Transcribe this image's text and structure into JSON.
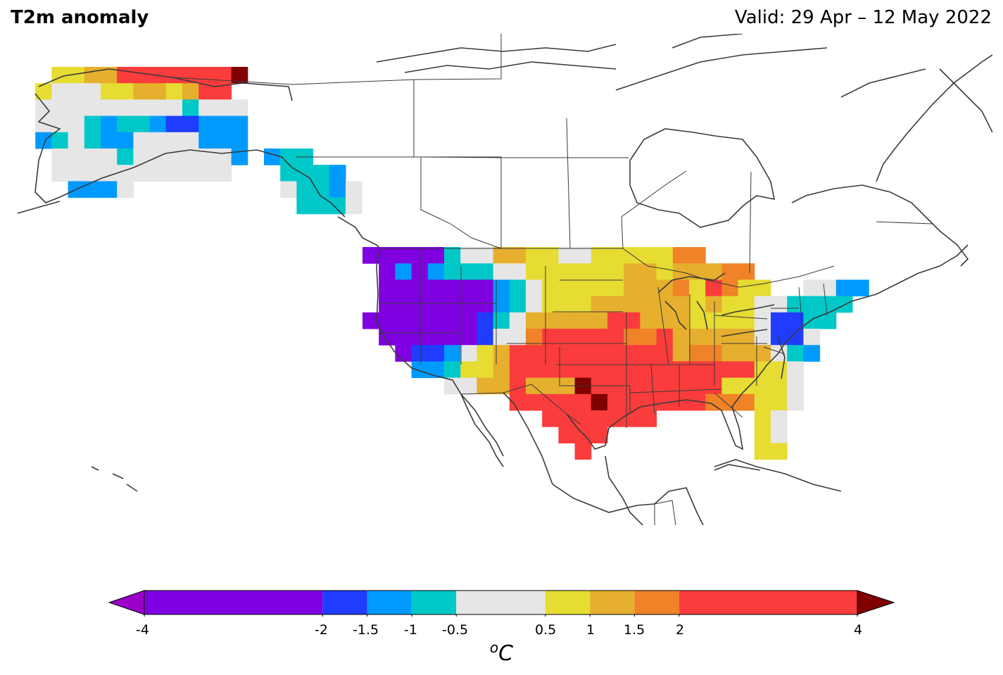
{
  "title": "T2m anomaly",
  "valid": "Valid: 29 Apr – 12 May 2022",
  "colorbar": {
    "unit_base": "C",
    "unit_sup": "o",
    "ticks": [
      "-4",
      "-2",
      "-1.5",
      "-1",
      "-0.5",
      "0.5",
      "1",
      "1.5",
      "2",
      "4"
    ],
    "under_color": "#9a00c8",
    "over_color": "#800000",
    "bins": [
      {
        "from": -4,
        "to": -2,
        "color": "#7f00e0"
      },
      {
        "from": -2,
        "to": -1.5,
        "color": "#1f3cff"
      },
      {
        "from": -1.5,
        "to": -1,
        "color": "#009aff"
      },
      {
        "from": -1,
        "to": -0.5,
        "color": "#00c8c8"
      },
      {
        "from": -0.5,
        "to": 0.5,
        "color": "#e6e6e6"
      },
      {
        "from": 0.5,
        "to": 1,
        "color": "#e6dc32"
      },
      {
        "from": 1,
        "to": 1.5,
        "color": "#e6af2d"
      },
      {
        "from": 1.5,
        "to": 2,
        "color": "#f08228"
      },
      {
        "from": 2,
        "to": 4,
        "color": "#fa3c3c"
      }
    ]
  },
  "anomaly_field": {
    "legend_key": "V=<-2, B=-2..-1.5, L=-1.5..-1, C=-1..-0.5, G=-0.5..0.5, Y=0.5..1, O=1..1.5, N=1.5..2, R=2..4, D=>4, .=no data",
    "alaska_rows": [
      "..YYOORRRRRRRD",
      ".YGGGYYOOYORR.",
      ".GGGGGGGGGCGGG",
      ".GGGCLCCLBBLLL",
      ".LCGCLLGGGGLLL",
      "..GGGGCGGGGGGL",
      "..GGGGGGGGGGG.",
      "...LLLG.......",
      "..............",
      "..............",
      "..............",
      ".............."
    ],
    "coast_rows": [
      "LCC...",
      ".CCCL.",
      ".GCCLG",
      "..CCCG"
    ],
    "conus_rows": [
      "VVVVVCGGOOYYGGYYYYYNN..........",
      ".VLVLCCCGGYYYYYYOOYOOONN.......",
      ".VVVVVVVLCGYYYYYOOONYRNYY..GGLL",
      ".VVVVVVVLCGYYYOOOOOOYOYYGGCCCC.",
      "VVVVVVVBCGOOOOORROOOYYYYGBBCC..",
      ".VVVVVVBGGNRRRRRNNROOOOOGBBG...",
      "..VBBLGYORRRRRRRRRRONNOOOGCL...",
      "...LLCYYORRRRRRRRRRRRRRRYYG....",
      ".....GGOOROOODRRRRRRRRYYYYG....",
      ".........RRRRRDRRRRRRNNNYYG....",
      "...........RRRRRRR......YG.....",
      "............RRR.........YG.....",
      ".............R..........YY.....",
      "..............................."
    ]
  }
}
